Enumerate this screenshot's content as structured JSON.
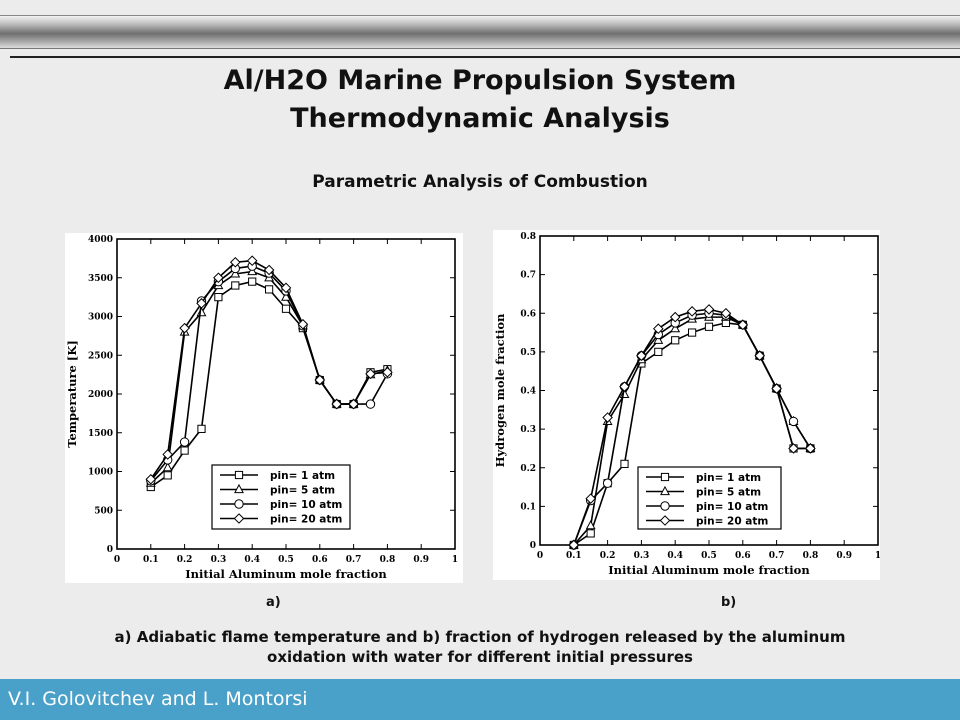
{
  "slide": {
    "title_line1": "Al/H2O Marine Propulsion System",
    "title_line2": "Thermodynamic Analysis",
    "subtitle": "Parametric Analysis of Combustion",
    "label_a": "a)",
    "label_b": "b)",
    "caption_line1": "a) Adiabatic flame temperature and b) fraction of hydrogen released by the aluminum",
    "caption_line2": "oxidation with water for different initial pressures",
    "authors": "V.I. Golovitchev and L. Montorsi",
    "footer_color": "#49a0c9"
  },
  "chart_data": [
    {
      "type": "line",
      "xlabel": "Initial Aluminum mole fraction",
      "ylabel": "Temperature [K]",
      "xlim": [
        0,
        1
      ],
      "ylim": [
        0,
        4000
      ],
      "xticks": [
        "0",
        "0.1",
        "0.2",
        "0.3",
        "0.4",
        "0.5",
        "0.6",
        "0.7",
        "0.8",
        "0.9",
        "1"
      ],
      "yticks": [
        "0",
        "500",
        "1000",
        "1500",
        "2000",
        "2500",
        "3000",
        "3500",
        "4000"
      ],
      "legend_position": "bottom-right",
      "series": [
        {
          "name": "pin= 1 atm",
          "marker": "square",
          "x": [
            0.1,
            0.15,
            0.2,
            0.25,
            0.3,
            0.35,
            0.4,
            0.45,
            0.5,
            0.55,
            0.6,
            0.65,
            0.7,
            0.75,
            0.8
          ],
          "y": [
            800,
            950,
            1270,
            1550,
            3250,
            3400,
            3450,
            3350,
            3100,
            2850,
            2180,
            1870,
            1870,
            2280,
            2320
          ]
        },
        {
          "name": "pin= 5 atm",
          "marker": "triangle",
          "x": [
            0.1,
            0.15,
            0.2,
            0.25,
            0.3,
            0.35,
            0.4,
            0.45,
            0.5,
            0.55,
            0.6,
            0.65,
            0.7,
            0.75,
            0.8
          ],
          "y": [
            850,
            1050,
            2800,
            3050,
            3400,
            3550,
            3580,
            3500,
            3250,
            2880,
            2180,
            1870,
            1870,
            2250,
            2300
          ]
        },
        {
          "name": "pin= 10 atm",
          "marker": "circle",
          "x": [
            0.1,
            0.15,
            0.2,
            0.25,
            0.3,
            0.35,
            0.4,
            0.45,
            0.5,
            0.55,
            0.6,
            0.65,
            0.7,
            0.75,
            0.8
          ],
          "y": [
            880,
            1150,
            1380,
            3200,
            3450,
            3620,
            3650,
            3560,
            3330,
            2880,
            2180,
            1870,
            1870,
            1870,
            2260
          ]
        },
        {
          "name": "pin= 20 atm",
          "marker": "diamond",
          "x": [
            0.1,
            0.15,
            0.2,
            0.25,
            0.3,
            0.35,
            0.4,
            0.45,
            0.5,
            0.55,
            0.6,
            0.65,
            0.7,
            0.75,
            0.8
          ],
          "y": [
            900,
            1220,
            2850,
            3170,
            3500,
            3700,
            3720,
            3600,
            3370,
            2900,
            2180,
            1870,
            1870,
            2260,
            2280
          ]
        }
      ]
    },
    {
      "type": "line",
      "xlabel": "Initial Aluminum mole fraction",
      "ylabel": "Hydrogen mole fraction",
      "xlim": [
        0,
        1
      ],
      "ylim": [
        0,
        0.8
      ],
      "xticks": [
        "0",
        "0.1",
        "0.2",
        "0.3",
        "0.4",
        "0.5",
        "0.6",
        "0.7",
        "0.8",
        "0.9",
        "1"
      ],
      "yticks": [
        "0",
        "0.1",
        "0.2",
        "0.3",
        "0.4",
        "0.5",
        "0.6",
        "0.7",
        "0.8"
      ],
      "legend_position": "bottom-right",
      "series": [
        {
          "name": "pin= 1 atm",
          "marker": "square",
          "x": [
            0.1,
            0.15,
            0.2,
            0.25,
            0.3,
            0.35,
            0.4,
            0.45,
            0.5,
            0.55,
            0.6,
            0.65,
            0.7,
            0.75,
            0.8
          ],
          "y": [
            0,
            0.03,
            0.16,
            0.21,
            0.47,
            0.5,
            0.53,
            0.55,
            0.565,
            0.575,
            0.57,
            0.49,
            0.405,
            0.25,
            0.25
          ]
        },
        {
          "name": "pin= 5 atm",
          "marker": "triangle",
          "x": [
            0.1,
            0.15,
            0.2,
            0.25,
            0.3,
            0.35,
            0.4,
            0.45,
            0.5,
            0.55,
            0.6,
            0.65,
            0.7,
            0.75,
            0.8
          ],
          "y": [
            0,
            0.05,
            0.32,
            0.39,
            0.48,
            0.53,
            0.56,
            0.585,
            0.59,
            0.59,
            0.57,
            0.49,
            0.405,
            0.32,
            0.25
          ]
        },
        {
          "name": "pin= 10 atm",
          "marker": "circle",
          "x": [
            0.1,
            0.15,
            0.2,
            0.25,
            0.3,
            0.35,
            0.4,
            0.45,
            0.5,
            0.55,
            0.6,
            0.65,
            0.7,
            0.75,
            0.8
          ],
          "y": [
            0,
            0.115,
            0.16,
            0.41,
            0.49,
            0.545,
            0.575,
            0.595,
            0.6,
            0.595,
            0.57,
            0.49,
            0.405,
            0.32,
            0.25
          ]
        },
        {
          "name": "pin= 20 atm",
          "marker": "diamond",
          "x": [
            0.1,
            0.15,
            0.2,
            0.25,
            0.3,
            0.35,
            0.4,
            0.45,
            0.5,
            0.55,
            0.6,
            0.65,
            0.7,
            0.75,
            0.8
          ],
          "y": [
            0,
            0.12,
            0.33,
            0.41,
            0.49,
            0.56,
            0.59,
            0.605,
            0.61,
            0.6,
            0.57,
            0.49,
            0.405,
            0.25,
            0.25
          ]
        }
      ]
    }
  ]
}
